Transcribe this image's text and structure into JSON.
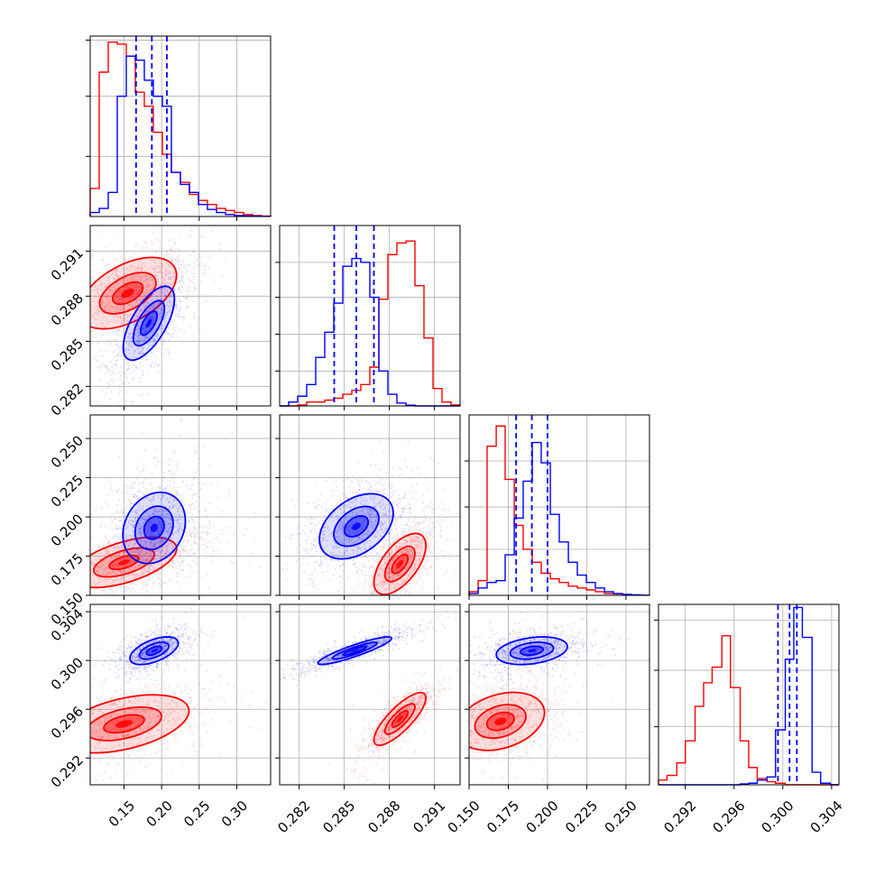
{
  "chart_data": {
    "type": "corner",
    "title": "",
    "grid": true,
    "series": [
      {
        "key": "red",
        "color": "#ff0000",
        "light": "#fde2e2"
      },
      {
        "key": "blue",
        "color": "#0000ff",
        "light": "#dfe0ff"
      }
    ],
    "params": [
      {
        "range": [
          0.105,
          0.345
        ],
        "ticks": [
          0.15,
          0.2,
          0.25,
          0.3
        ],
        "tick_labels": [
          "0.15",
          "0.20",
          "0.25",
          "0.30"
        ]
      },
      {
        "range": [
          0.2807,
          0.2927
        ],
        "ticks": [
          0.282,
          0.285,
          0.288,
          0.291
        ],
        "tick_labels": [
          "0.282",
          "0.285",
          "0.288",
          "0.291"
        ]
      },
      {
        "range": [
          0.15,
          0.265
        ],
        "ticks": [
          0.15,
          0.175,
          0.2,
          0.225,
          0.25
        ],
        "tick_labels": [
          "0.150",
          "0.175",
          "0.200",
          "0.225",
          "0.250"
        ]
      },
      {
        "range": [
          0.2898,
          0.3046
        ],
        "ticks": [
          0.292,
          0.296,
          0.3,
          0.304
        ],
        "tick_labels": [
          "0.292",
          "0.296",
          "0.300",
          "0.304"
        ]
      }
    ],
    "histograms": [
      {
        "bins": [
          0.105,
          0.117,
          0.129,
          0.141,
          0.153,
          0.165,
          0.177,
          0.189,
          0.201,
          0.213,
          0.225,
          0.237,
          0.249,
          0.261,
          0.273,
          0.285,
          0.297,
          0.309,
          0.321,
          0.333,
          0.345
        ],
        "red": [
          0.14,
          0.72,
          0.87,
          0.86,
          0.8,
          0.62,
          0.55,
          0.42,
          0.31,
          0.22,
          0.17,
          0.11,
          0.08,
          0.06,
          0.04,
          0.03,
          0.02,
          0.01,
          0.005,
          0.002
        ],
        "blue": [
          0.02,
          0.04,
          0.12,
          0.6,
          0.8,
          0.78,
          0.68,
          0.6,
          0.55,
          0.22,
          0.16,
          0.12,
          0.06,
          0.035,
          0.02,
          0.01,
          0.005,
          0.003,
          0.002,
          0.001
        ],
        "quantiles": [
          0.166,
          0.187,
          0.207
        ],
        "ymax": 0.9,
        "yticks": [
          0.3,
          0.6,
          0.88
        ]
      },
      {
        "bins": [
          0.2807,
          0.2813,
          0.2819,
          0.2825,
          0.2831,
          0.2837,
          0.2843,
          0.2849,
          0.2855,
          0.2861,
          0.2867,
          0.2873,
          0.2879,
          0.2885,
          0.2891,
          0.2897,
          0.2903,
          0.2909,
          0.2915,
          0.2921,
          0.2927
        ],
        "red": [
          0.0,
          0.0,
          0.005,
          0.02,
          0.02,
          0.03,
          0.04,
          0.06,
          0.08,
          0.11,
          0.2,
          0.55,
          0.78,
          0.84,
          0.85,
          0.62,
          0.35,
          0.09,
          0.02,
          0.005
        ],
        "blue": [
          0.0,
          0.02,
          0.05,
          0.11,
          0.25,
          0.38,
          0.53,
          0.72,
          0.76,
          0.74,
          0.56,
          0.18,
          0.06,
          0.015,
          0.004,
          0.0,
          0.0,
          0.0,
          0.0,
          0.0
        ],
        "quantiles": [
          0.28433,
          0.2858,
          0.28697
        ],
        "ymax": 0.93,
        "yticks": [
          0.18,
          0.37,
          0.56,
          0.74
        ]
      },
      {
        "bins": [
          0.15,
          0.1558,
          0.1615,
          0.1673,
          0.173,
          0.1788,
          0.1845,
          0.1903,
          0.196,
          0.2018,
          0.2075,
          0.2133,
          0.219,
          0.2248,
          0.2305,
          0.2363,
          0.242,
          0.2478,
          0.2535,
          0.2593,
          0.265
        ],
        "red": [
          0.02,
          0.08,
          0.81,
          0.92,
          0.63,
          0.38,
          0.25,
          0.18,
          0.12,
          0.09,
          0.07,
          0.05,
          0.04,
          0.03,
          0.02,
          0.01,
          0.008,
          0.004,
          0.002,
          0.001
        ],
        "blue": [
          0.01,
          0.04,
          0.07,
          0.08,
          0.22,
          0.42,
          0.62,
          0.83,
          0.72,
          0.44,
          0.29,
          0.18,
          0.11,
          0.07,
          0.04,
          0.02,
          0.01,
          0.005,
          0.003,
          0.001
        ],
        "quantiles": [
          0.18,
          0.19,
          0.2
        ],
        "ymax": 0.98,
        "yticks": [
          0.25,
          0.48,
          0.73
        ]
      },
      {
        "bins": [
          0.2898,
          0.2905,
          0.2913,
          0.292,
          0.2928,
          0.2935,
          0.2942,
          0.295,
          0.2957,
          0.2965,
          0.2972,
          0.2979,
          0.2987,
          0.2994,
          0.3002,
          0.3009,
          0.3016,
          0.3024,
          0.3031,
          0.3039,
          0.3046
        ],
        "red": [
          0.03,
          0.06,
          0.14,
          0.28,
          0.5,
          0.65,
          0.75,
          0.95,
          0.62,
          0.28,
          0.11,
          0.04,
          0.02,
          0.01,
          0.0,
          0.0,
          0.0,
          0.0,
          0.0,
          0.0
        ],
        "blue": [
          0.0,
          0.0,
          0.0,
          0.0,
          0.0,
          0.0,
          0.0,
          0.0,
          0.0,
          0.005,
          0.01,
          0.03,
          0.05,
          0.35,
          0.8,
          1.13,
          0.94,
          0.08,
          0.01,
          0.0
        ],
        "quantiles": [
          0.2996,
          0.30055,
          0.30115
        ],
        "ymax": 1.15,
        "yticks": [
          0.37,
          0.73,
          1.05
        ]
      }
    ],
    "pairs": [
      {
        "x": 0,
        "y": 1,
        "red": {
          "mean": [
            0.155,
            0.2882
          ],
          "sd": [
            0.03,
            0.0011
          ],
          "rho": 0.5,
          "scales": [
            0.18,
            0.42,
            0.78,
            1.35
          ]
        },
        "blue": {
          "mean": [
            0.183,
            0.2862
          ],
          "sd": [
            0.018,
            0.0013
          ],
          "rho": 0.65,
          "scales": [
            0.14,
            0.38,
            0.72,
            1.18
          ]
        }
      },
      {
        "x": 0,
        "y": 2,
        "red": {
          "mean": [
            0.15,
            0.171
          ],
          "sd": [
            0.035,
            0.008
          ],
          "rho": 0.55,
          "scales": [
            0.14,
            0.35,
            0.72,
            1.25
          ]
        },
        "blue": {
          "mean": [
            0.19,
            0.193
          ],
          "sd": [
            0.022,
            0.012
          ],
          "rho": 0.2,
          "scales": [
            0.14,
            0.38,
            0.72,
            1.18
          ]
        }
      },
      {
        "x": 0,
        "y": 3,
        "red": {
          "mean": [
            0.15,
            0.2948
          ],
          "sd": [
            0.04,
            0.0011
          ],
          "rho": 0.45,
          "scales": [
            0.18,
            0.42,
            0.78,
            1.35
          ]
        },
        "blue": {
          "mean": [
            0.19,
            0.3008
          ],
          "sd": [
            0.017,
            0.0006
          ],
          "rho": 0.55,
          "scales": [
            0.14,
            0.38,
            0.72,
            1.18
          ]
        }
      },
      {
        "x": 1,
        "y": 2,
        "red": {
          "mean": [
            0.2887,
            0.17
          ],
          "sd": [
            0.0008,
            0.009
          ],
          "rho": 0.6,
          "scales": [
            0.18,
            0.42,
            0.78,
            1.35
          ]
        },
        "blue": {
          "mean": [
            0.2858,
            0.194
          ],
          "sd": [
            0.0013,
            0.011
          ],
          "rho": 0.4,
          "scales": [
            0.14,
            0.38,
            0.72,
            1.18
          ]
        }
      },
      {
        "x": 1,
        "y": 3,
        "red": {
          "mean": [
            0.2887,
            0.2952
          ],
          "sd": [
            0.0008,
            0.001
          ],
          "rho": 0.8,
          "scales": [
            0.18,
            0.42,
            0.78,
            1.35
          ]
        },
        "blue": {
          "mean": [
            0.2857,
            0.3008
          ],
          "sd": [
            0.0013,
            0.0006
          ],
          "rho": 0.9,
          "scales": [
            0.14,
            0.38,
            0.72,
            1.18
          ]
        }
      },
      {
        "x": 2,
        "y": 3,
        "red": {
          "mean": [
            0.17,
            0.295
          ],
          "sd": [
            0.013,
            0.0011
          ],
          "rho": 0.3,
          "scales": [
            0.18,
            0.42,
            0.78,
            1.35
          ]
        },
        "blue": {
          "mean": [
            0.19,
            0.3008
          ],
          "sd": [
            0.012,
            0.0006
          ],
          "rho": 0.3,
          "scales": [
            0.14,
            0.38,
            0.72,
            1.18
          ]
        }
      }
    ]
  }
}
